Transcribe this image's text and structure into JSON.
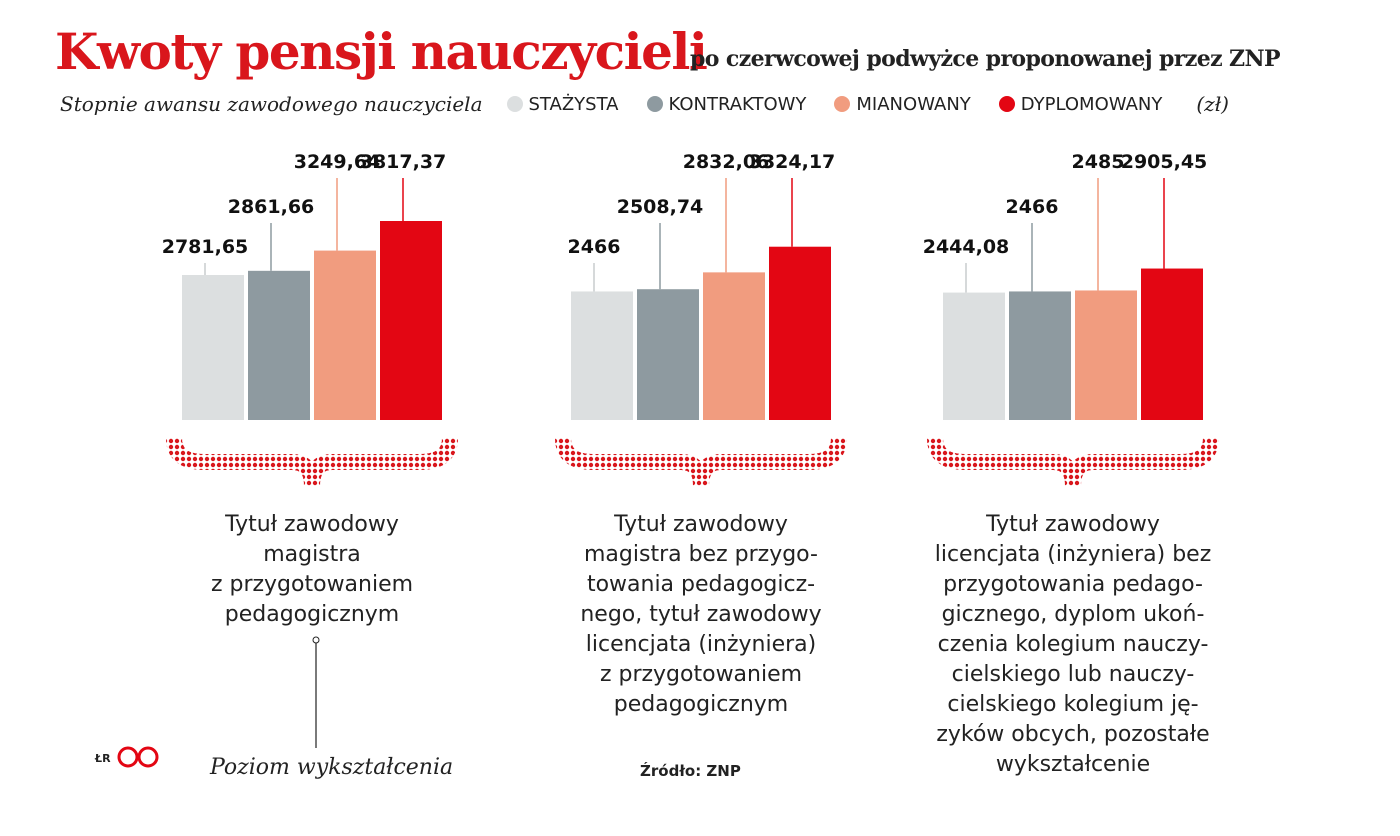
{
  "chart_data": {
    "type": "bar",
    "title": "Kwoty pensji nauczycieli",
    "subtitle": "po czerwcowej podwyżce proponowanej przez ZNP",
    "legend_title": "Stopnie awansu zawodowego nauczyciela",
    "unit": "(zł)",
    "categories": [
      "Tytuł zawodowy\nmagistra\nz przygotowaniem\npedagogicznym",
      "Tytuł zawodowy\nmagistra bez przygo-\ntowania pedagogicz-\nnego, tytuł zawodowy\nlicencjata (inżyniera)\nz przygotowaniem\npedagogicznym",
      "Tytuł zawodowy\nlicencjata (inżyniera) bez\nprzygotowania pedago-\ngicznego, dyplom ukoń-\nczenia kolegium nauczy-\ncielskiego lub nauczy-\ncielskiego kolegium ję-\nzyków obcych, pozostałe\nwykształcenie"
    ],
    "series": [
      {
        "name": "STAŻYSTA",
        "color": "#dcdfe0",
        "values": [
          2781.65,
          2466,
          2444.08
        ],
        "value_labels": [
          "2781,65",
          "2466",
          "2444,08"
        ]
      },
      {
        "name": "KONTRAKTOWY",
        "color": "#8e9aa0",
        "values": [
          2861.66,
          2508.74,
          2466
        ],
        "value_labels": [
          "2861,66",
          "2508,74",
          "2466"
        ]
      },
      {
        "name": "MIANOWANY",
        "color": "#f19c7f",
        "values": [
          3249.64,
          2832.06,
          2485
        ],
        "value_labels": [
          "3249,64",
          "2832,06",
          "2485"
        ]
      },
      {
        "name": "DYPLOMOWANY",
        "color": "#e30613",
        "values": [
          3817.37,
          3324.17,
          2905.45
        ],
        "value_labels": [
          "3817,37",
          "3324,17",
          "2905,45"
        ]
      }
    ],
    "axis_caption": "Poziom wykształcenia",
    "source": "Źródło: ZNP",
    "credit": "ŁR"
  }
}
